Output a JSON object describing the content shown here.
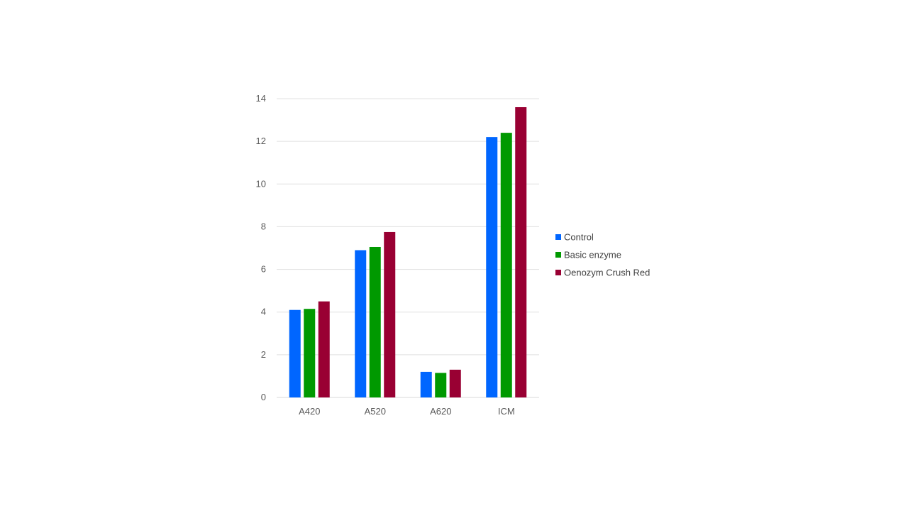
{
  "chart_data": {
    "type": "bar",
    "title": "",
    "xlabel": "",
    "ylabel": "",
    "categories": [
      "A420",
      "A520",
      "A620",
      "ICM"
    ],
    "series": [
      {
        "name": "Control",
        "color": "#0066FF",
        "values": [
          4.1,
          6.9,
          1.2,
          12.2
        ]
      },
      {
        "name": "Basic enzyme",
        "color": "#009900",
        "values": [
          4.15,
          7.05,
          1.15,
          12.4
        ]
      },
      {
        "name": "Oenozym Crush Red",
        "color": "#990033",
        "values": [
          4.5,
          7.75,
          1.3,
          13.6
        ]
      }
    ],
    "ylim": [
      0,
      14
    ],
    "yticks": [
      "0",
      "2",
      "4",
      "6",
      "8",
      "10",
      "12",
      "14"
    ],
    "grid": true,
    "legend_position": "right"
  }
}
